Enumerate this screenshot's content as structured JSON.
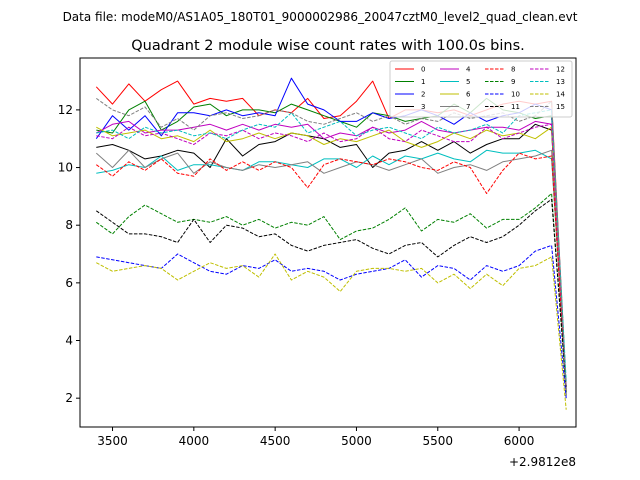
{
  "chart_data": {
    "type": "line",
    "suptitle": "Data file: modeM0/AS1A05_180T01_9000002986_20047cztM0_level2_quad_clean.evt",
    "title": "Quadrant 2 module wise count rates with 100.0s bins.",
    "xlabel": "",
    "ylabel": "",
    "x_offset_label": "+2.9812e8",
    "xlim": [
      3300,
      6350
    ],
    "ylim": [
      1.0,
      13.8
    ],
    "xticks": [
      3500,
      4000,
      4500,
      5000,
      5500,
      6000
    ],
    "yticks": [
      2,
      4,
      6,
      8,
      10,
      12
    ],
    "x": [
      3400,
      3500,
      3600,
      3700,
      3800,
      3900,
      4000,
      4100,
      4200,
      4300,
      4400,
      4500,
      4600,
      4700,
      4800,
      4900,
      5000,
      5100,
      5200,
      5300,
      5400,
      5500,
      5600,
      5700,
      5800,
      5900,
      6000,
      6100,
      6200,
      6290
    ],
    "legend_position": "upper right",
    "series": [
      {
        "name": "0",
        "color": "#ff0000",
        "dash": "solid",
        "values": [
          12.8,
          12.2,
          12.9,
          12.3,
          12.7,
          13.0,
          12.2,
          12.4,
          12.3,
          12.4,
          11.8,
          12.0,
          11.9,
          12.4,
          11.7,
          11.8,
          12.3,
          13.0,
          11.7,
          12.0,
          12.0,
          11.9,
          12.0,
          11.8,
          12.0,
          12.2,
          12.3,
          12.2,
          12.3,
          2.4
        ]
      },
      {
        "name": "1",
        "color": "#008000",
        "dash": "solid",
        "values": [
          11.3,
          11.2,
          12.0,
          12.3,
          11.3,
          11.6,
          12.1,
          12.2,
          11.8,
          12.0,
          12.0,
          11.9,
          12.2,
          12.0,
          11.8,
          11.6,
          11.4,
          11.9,
          11.8,
          11.6,
          11.7,
          11.8,
          12.2,
          11.9,
          12.4,
          12.0,
          11.9,
          11.7,
          11.8,
          2.2
        ]
      },
      {
        "name": "2",
        "color": "#0000ff",
        "dash": "solid",
        "values": [
          11.0,
          11.8,
          11.3,
          11.8,
          11.1,
          11.9,
          11.9,
          11.8,
          12.0,
          11.8,
          11.9,
          11.8,
          13.1,
          12.2,
          12.0,
          11.6,
          11.6,
          11.9,
          11.7,
          11.8,
          12.0,
          11.8,
          11.5,
          11.9,
          11.6,
          11.8,
          11.9,
          12.2,
          12.0,
          2.3
        ]
      },
      {
        "name": "3",
        "color": "#000000",
        "dash": "solid",
        "values": [
          10.7,
          10.8,
          10.6,
          10.3,
          10.4,
          10.6,
          10.5,
          10.0,
          11.0,
          10.4,
          10.8,
          10.9,
          11.2,
          11.1,
          11.0,
          10.7,
          10.8,
          10.0,
          10.5,
          10.6,
          10.9,
          10.6,
          10.9,
          10.5,
          10.8,
          11.0,
          11.0,
          11.5,
          11.3,
          2.1
        ]
      },
      {
        "name": "4",
        "color": "#bf00bf",
        "dash": "solid",
        "values": [
          11.2,
          11.5,
          11.6,
          11.2,
          11.3,
          11.3,
          11.4,
          11.5,
          11.3,
          11.5,
          11.3,
          11.5,
          11.4,
          11.5,
          11.0,
          11.2,
          11.1,
          11.4,
          11.2,
          11.3,
          11.6,
          11.3,
          11.2,
          11.3,
          11.4,
          11.4,
          11.3,
          11.6,
          11.5,
          2.2
        ]
      },
      {
        "name": "5",
        "color": "#00bfbf",
        "dash": "solid",
        "values": [
          9.8,
          9.9,
          10.1,
          10.0,
          10.4,
          9.9,
          10.1,
          10.1,
          10.0,
          9.9,
          10.2,
          10.2,
          10.1,
          10.0,
          10.3,
          10.3,
          10.0,
          10.4,
          10.1,
          10.4,
          10.3,
          10.5,
          10.3,
          10.2,
          10.6,
          10.5,
          10.5,
          10.6,
          10.3,
          2.4
        ]
      },
      {
        "name": "6",
        "color": "#bfbf00",
        "dash": "solid",
        "values": [
          11.4,
          11.1,
          11.2,
          11.3,
          11.0,
          11.1,
          10.9,
          11.3,
          10.9,
          11.0,
          11.2,
          11.0,
          11.2,
          11.1,
          10.8,
          11.0,
          10.9,
          11.1,
          11.3,
          10.9,
          10.7,
          10.9,
          11.2,
          11.0,
          11.3,
          11.1,
          11.2,
          11.0,
          11.4,
          2.3
        ]
      },
      {
        "name": "7",
        "color": "#808080",
        "dash": "solid",
        "values": [
          10.5,
          10.0,
          10.6,
          10.0,
          10.3,
          10.5,
          9.8,
          10.2,
          10.0,
          9.9,
          10.1,
          10.0,
          10.1,
          10.2,
          9.8,
          10.0,
          10.2,
          10.1,
          9.9,
          10.1,
          10.3,
          9.8,
          10.0,
          10.1,
          9.9,
          10.2,
          10.3,
          10.4,
          10.6,
          2.1
        ]
      },
      {
        "name": "8",
        "color": "#ff0000",
        "dash": "dashed",
        "values": [
          10.1,
          9.7,
          10.2,
          9.9,
          10.3,
          9.8,
          9.7,
          10.3,
          9.9,
          10.2,
          9.9,
          10.2,
          10.0,
          9.3,
          10.1,
          10.3,
          10.2,
          10.1,
          10.3,
          10.2,
          10.0,
          9.9,
          10.2,
          10.0,
          9.1,
          9.9,
          10.5,
          10.3,
          10.4,
          2.2
        ]
      },
      {
        "name": "9",
        "color": "#008000",
        "dash": "dashed",
        "values": [
          8.1,
          7.7,
          8.3,
          8.7,
          8.4,
          8.1,
          8.2,
          8.1,
          8.3,
          8.0,
          8.2,
          7.9,
          8.1,
          8.0,
          8.3,
          7.5,
          7.8,
          7.9,
          8.2,
          8.6,
          7.8,
          8.2,
          8.1,
          8.4,
          7.9,
          8.2,
          8.2,
          8.6,
          9.1,
          2.2
        ]
      },
      {
        "name": "10",
        "color": "#0000ff",
        "dash": "dashed",
        "values": [
          6.9,
          6.8,
          6.7,
          6.6,
          6.5,
          7.0,
          6.7,
          6.4,
          6.3,
          6.6,
          6.5,
          6.8,
          6.4,
          6.5,
          6.4,
          6.1,
          6.3,
          6.4,
          6.5,
          6.8,
          6.2,
          6.6,
          6.5,
          6.1,
          6.6,
          6.4,
          6.6,
          7.1,
          7.3,
          2.0
        ]
      },
      {
        "name": "11",
        "color": "#000000",
        "dash": "dashed",
        "values": [
          8.5,
          8.1,
          7.7,
          7.7,
          7.6,
          7.4,
          8.2,
          7.4,
          8.0,
          7.9,
          7.6,
          7.7,
          7.3,
          7.1,
          7.3,
          7.4,
          7.5,
          7.2,
          7.0,
          7.3,
          7.4,
          6.9,
          7.3,
          7.6,
          7.4,
          7.6,
          8.0,
          8.5,
          8.9,
          2.4
        ]
      },
      {
        "name": "12",
        "color": "#bf00bf",
        "dash": "dashed",
        "values": [
          11.1,
          11.0,
          11.4,
          11.1,
          11.2,
          11.0,
          10.8,
          11.2,
          11.1,
          11.3,
          11.0,
          11.2,
          11.1,
          10.9,
          11.2,
          10.9,
          11.0,
          11.4,
          11.0,
          10.9,
          11.3,
          11.1,
          10.9,
          10.9,
          11.4,
          11.0,
          11.2,
          11.4,
          11.5,
          2.3
        ]
      },
      {
        "name": "13",
        "color": "#00bfbf",
        "dash": "dashed",
        "values": [
          11.2,
          11.3,
          11.0,
          11.4,
          11.2,
          11.3,
          11.1,
          11.2,
          11.0,
          11.3,
          11.5,
          11.4,
          11.9,
          11.2,
          11.4,
          11.6,
          11.1,
          11.3,
          11.4,
          11.2,
          11.0,
          11.4,
          11.2,
          11.3,
          11.5,
          11.2,
          11.8,
          11.9,
          12.0,
          2.6
        ]
      },
      {
        "name": "14",
        "color": "#bfbf00",
        "dash": "dashed",
        "values": [
          6.7,
          6.4,
          6.5,
          6.6,
          6.5,
          6.1,
          6.4,
          6.7,
          6.5,
          6.6,
          6.2,
          7.0,
          6.1,
          6.4,
          6.2,
          5.7,
          6.4,
          6.5,
          6.5,
          6.4,
          6.5,
          6.0,
          6.3,
          5.8,
          6.3,
          5.9,
          6.5,
          6.6,
          6.9,
          1.6
        ]
      },
      {
        "name": "15",
        "color": "#808080",
        "dash": "dashed",
        "values": [
          12.4,
          12.0,
          11.8,
          12.1,
          11.4,
          11.7,
          11.3,
          11.8,
          11.9,
          11.7,
          11.8,
          12.0,
          11.9,
          11.6,
          11.5,
          11.7,
          11.9,
          11.6,
          11.8,
          11.5,
          11.7,
          11.6,
          11.9,
          11.7,
          11.8,
          11.9,
          11.6,
          11.8,
          12.3,
          2.2
        ]
      }
    ]
  }
}
